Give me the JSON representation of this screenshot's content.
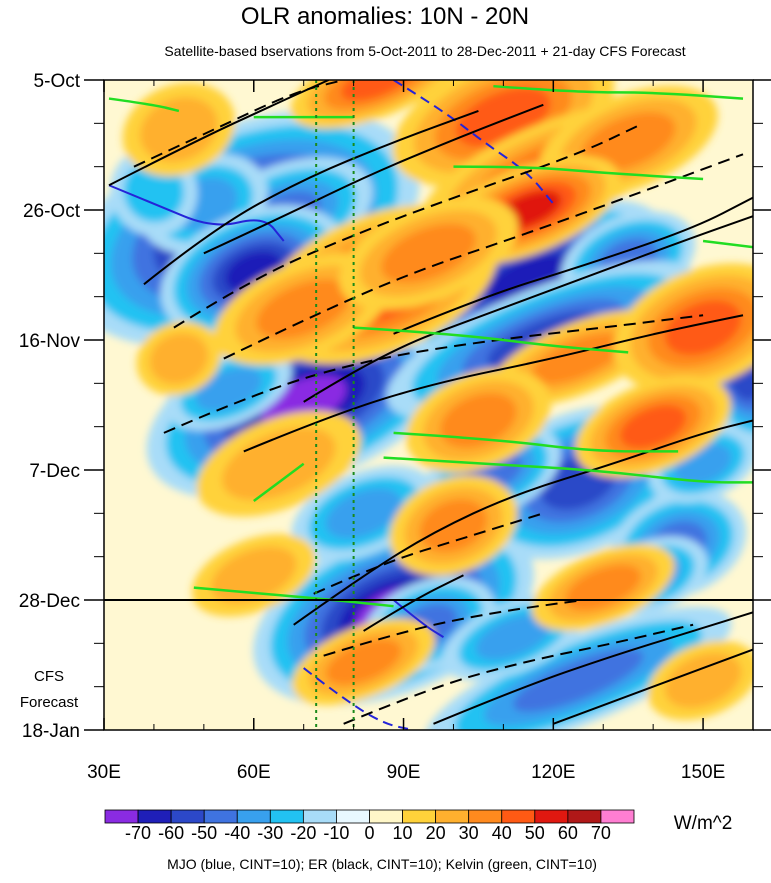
{
  "chart_data": {
    "type": "heatmap",
    "title": "OLR anomalies: 10N - 20N",
    "subtitle": "Satellite-based bservations from 5-Oct-2011 to 28-Dec-2011 + 21-day CFS Forecast",
    "x_axis": {
      "label": "",
      "ticks": [
        "30E",
        "60E",
        "90E",
        "120E",
        "150E"
      ],
      "tick_values": [
        30,
        60,
        90,
        120,
        150
      ],
      "range": [
        30,
        160
      ]
    },
    "y_axis": {
      "label": "",
      "ticks": [
        "5-Oct",
        "26-Oct",
        "16-Nov",
        "7-Dec",
        "28-Dec",
        "18-Jan"
      ],
      "tick_days": [
        0,
        21,
        42,
        63,
        84,
        105
      ],
      "range_days": [
        0,
        105
      ],
      "inverted": true
    },
    "forecast_label": [
      "CFS",
      "Forecast"
    ],
    "observation_end_line_day": 84,
    "reference_longitudes": [
      72.5,
      80
    ],
    "colorbar": {
      "labels": [
        "-70",
        "-60",
        "-50",
        "-40",
        "-30",
        "-20",
        "-10",
        "0",
        "10",
        "20",
        "30",
        "40",
        "50",
        "60",
        "70"
      ],
      "colors": [
        "#8a2be2",
        "#1f1fb8",
        "#2c48c8",
        "#3f73e0",
        "#38a0ee",
        "#22c2f2",
        "#a8dcf8",
        "#e8f8ff",
        "#fff7c8",
        "#ffd23a",
        "#ffb02e",
        "#ff8a1e",
        "#ff5a14",
        "#e01810",
        "#b01818",
        "#ff7ed2"
      ],
      "units": "W/m^2"
    },
    "contour_note": "MJO (blue, CINT=10); ER (black, CINT=10); Kelvin (green, CINT=10)",
    "anomaly_features": [
      {
        "lon": 58,
        "day": 24,
        "value": -70,
        "rx": 10,
        "ry": 4.5
      },
      {
        "lon": 66,
        "day": 22,
        "value": -40,
        "rx": 8,
        "ry": 3.5
      },
      {
        "lon": 50,
        "day": 20,
        "value": -30,
        "rx": 7,
        "ry": 4
      },
      {
        "lon": 60,
        "day": 31,
        "value": -60,
        "rx": 6,
        "ry": 3
      },
      {
        "lon": 70,
        "day": 52,
        "value": -70,
        "rx": 9,
        "ry": 3.5
      },
      {
        "lon": 55,
        "day": 50,
        "value": -30,
        "rx": 7,
        "ry": 3
      },
      {
        "lon": 88,
        "day": 86,
        "value": -70,
        "rx": 8,
        "ry": 3.5
      },
      {
        "lon": 95,
        "day": 88,
        "value": -40,
        "rx": 6,
        "ry": 3
      },
      {
        "lon": 115,
        "day": 32,
        "value": -60,
        "rx": 9,
        "ry": 3
      },
      {
        "lon": 135,
        "day": 29,
        "value": -40,
        "rx": 6,
        "ry": 3
      },
      {
        "lon": 118,
        "day": 42,
        "value": -50,
        "rx": 12,
        "ry": 3
      },
      {
        "lon": 125,
        "day": 65,
        "value": -50,
        "rx": 8,
        "ry": 4
      },
      {
        "lon": 108,
        "day": 63,
        "value": -40,
        "rx": 6,
        "ry": 3
      },
      {
        "lon": 145,
        "day": 75,
        "value": -40,
        "rx": 6,
        "ry": 3.5
      },
      {
        "lon": 150,
        "day": 62,
        "value": -30,
        "rx": 6,
        "ry": 3
      },
      {
        "lon": 125,
        "day": 97,
        "value": -40,
        "rx": 14,
        "ry": 3
      },
      {
        "lon": 158,
        "day": 48,
        "value": -50,
        "rx": 3,
        "ry": 4
      },
      {
        "lon": 82,
        "day": 70,
        "value": -30,
        "rx": 8,
        "ry": 3.5
      },
      {
        "lon": 140,
        "day": 80,
        "value": -30,
        "rx": 6,
        "ry": 3
      },
      {
        "lon": 112,
        "day": 90,
        "value": -30,
        "rx": 8,
        "ry": 3
      },
      {
        "lon": 40,
        "day": 18,
        "value": -20,
        "rx": 6,
        "ry": 5
      },
      {
        "lon": 85,
        "day": 0,
        "value": 40,
        "rx": 8,
        "ry": 2.5
      },
      {
        "lon": 110,
        "day": 6,
        "value": 40,
        "rx": 10,
        "ry": 4
      },
      {
        "lon": 120,
        "day": 15,
        "value": 40,
        "rx": 12,
        "ry": 3.5
      },
      {
        "lon": 135,
        "day": 10,
        "value": 30,
        "rx": 10,
        "ry": 4
      },
      {
        "lon": 115,
        "day": 21,
        "value": 50,
        "rx": 7,
        "ry": 2.5
      },
      {
        "lon": 85,
        "day": 33,
        "value": 50,
        "rx": 9,
        "ry": 4
      },
      {
        "lon": 70,
        "day": 37,
        "value": 30,
        "rx": 10,
        "ry": 4
      },
      {
        "lon": 95,
        "day": 28,
        "value": 30,
        "rx": 10,
        "ry": 4
      },
      {
        "lon": 125,
        "day": 45,
        "value": 30,
        "rx": 10,
        "ry": 3
      },
      {
        "lon": 150,
        "day": 40,
        "value": 40,
        "rx": 8,
        "ry": 4
      },
      {
        "lon": 140,
        "day": 56,
        "value": 40,
        "rx": 7,
        "ry": 3
      },
      {
        "lon": 105,
        "day": 55,
        "value": 30,
        "rx": 8,
        "ry": 4
      },
      {
        "lon": 100,
        "day": 72,
        "value": 30,
        "rx": 7,
        "ry": 4
      },
      {
        "lon": 65,
        "day": 62,
        "value": 20,
        "rx": 12,
        "ry": 5
      },
      {
        "lon": 130,
        "day": 82,
        "value": 30,
        "rx": 8,
        "ry": 3
      },
      {
        "lon": 82,
        "day": 94,
        "value": 30,
        "rx": 8,
        "ry": 3
      },
      {
        "lon": 60,
        "day": 80,
        "value": 20,
        "rx": 9,
        "ry": 4
      },
      {
        "lon": 150,
        "day": 97,
        "value": 20,
        "rx": 8,
        "ry": 4
      },
      {
        "lon": 45,
        "day": 45,
        "value": 20,
        "rx": 6,
        "ry": 4
      },
      {
        "lon": 45,
        "day": 8,
        "value": 20,
        "rx": 8,
        "ry": 5
      }
    ],
    "er_contours": [
      {
        "style": "solid",
        "points": [
          [
            31,
            17
          ],
          [
            48,
            10
          ],
          [
            64,
            4
          ],
          [
            75,
            0
          ]
        ]
      },
      {
        "style": "dashed",
        "points": [
          [
            36,
            14
          ],
          [
            52,
            8
          ],
          [
            68,
            2
          ],
          [
            78,
            0
          ]
        ]
      },
      {
        "style": "solid",
        "points": [
          [
            38,
            33
          ],
          [
            52,
            24
          ],
          [
            70,
            16
          ],
          [
            88,
            10
          ],
          [
            105,
            5
          ]
        ]
      },
      {
        "style": "solid",
        "points": [
          [
            50,
            28
          ],
          [
            66,
            22
          ],
          [
            84,
            15
          ],
          [
            102,
            9
          ],
          [
            118,
            4
          ]
        ]
      },
      {
        "style": "dashed",
        "points": [
          [
            44,
            40
          ],
          [
            60,
            32
          ],
          [
            80,
            25
          ],
          [
            100,
            19
          ],
          [
            125,
            12
          ],
          [
            138,
            7
          ]
        ]
      },
      {
        "style": "dashed",
        "points": [
          [
            54,
            45
          ],
          [
            72,
            38
          ],
          [
            92,
            31
          ],
          [
            114,
            25
          ],
          [
            138,
            18
          ],
          [
            158,
            12
          ]
        ]
      },
      {
        "style": "solid",
        "points": [
          [
            70,
            52
          ],
          [
            86,
            44
          ],
          [
            106,
            38
          ],
          [
            126,
            32
          ],
          [
            146,
            26
          ],
          [
            160,
            22
          ]
        ]
      },
      {
        "style": "solid",
        "points": [
          [
            88,
            41
          ],
          [
            106,
            35
          ],
          [
            126,
            30
          ],
          [
            148,
            24
          ],
          [
            160,
            19
          ]
        ]
      },
      {
        "style": "dashed",
        "points": [
          [
            42,
            57
          ],
          [
            62,
            50
          ],
          [
            84,
            45
          ],
          [
            108,
            42
          ],
          [
            130,
            40
          ],
          [
            150,
            38
          ]
        ]
      },
      {
        "style": "solid",
        "points": [
          [
            58,
            60
          ],
          [
            76,
            54
          ],
          [
            96,
            49
          ],
          [
            120,
            45
          ],
          [
            140,
            41
          ],
          [
            158,
            38
          ]
        ]
      },
      {
        "style": "solid",
        "points": [
          [
            68,
            88
          ],
          [
            82,
            80
          ],
          [
            96,
            73
          ],
          [
            112,
            67
          ],
          [
            132,
            62
          ],
          [
            150,
            57
          ],
          [
            160,
            55
          ]
        ]
      },
      {
        "style": "dashed",
        "points": [
          [
            72,
            83
          ],
          [
            86,
            78
          ],
          [
            102,
            74
          ],
          [
            118,
            70
          ]
        ]
      },
      {
        "style": "solid",
        "points": [
          [
            82,
            89
          ],
          [
            92,
            84
          ],
          [
            102,
            80
          ]
        ]
      },
      {
        "style": "dashed",
        "points": [
          [
            74,
            93
          ],
          [
            90,
            89
          ],
          [
            108,
            86
          ],
          [
            126,
            84
          ]
        ]
      },
      {
        "style": "dashed",
        "points": [
          [
            78,
            104
          ],
          [
            96,
            98
          ],
          [
            114,
            94
          ],
          [
            132,
            91
          ],
          [
            148,
            88
          ]
        ]
      },
      {
        "style": "solid",
        "points": [
          [
            96,
            104
          ],
          [
            114,
            98
          ],
          [
            132,
            93
          ],
          [
            148,
            89
          ],
          [
            160,
            86
          ]
        ]
      },
      {
        "style": "solid",
        "points": [
          [
            120,
            104
          ],
          [
            140,
            98
          ],
          [
            160,
            92
          ]
        ]
      }
    ],
    "mjo_contours": [
      {
        "style": "solid",
        "points": [
          [
            31,
            17
          ],
          [
            40,
            20
          ],
          [
            52,
            24
          ],
          [
            62,
            22
          ],
          [
            66,
            26
          ]
        ]
      },
      {
        "style": "dashed",
        "points": [
          [
            88,
            0
          ],
          [
            98,
            5
          ],
          [
            106,
            10
          ],
          [
            115,
            15
          ],
          [
            120,
            20
          ]
        ]
      },
      {
        "style": "dashed",
        "points": [
          [
            70,
            95
          ],
          [
            78,
            100
          ],
          [
            86,
            104
          ],
          [
            92,
            105
          ]
        ]
      },
      {
        "style": "solid",
        "points": [
          [
            88,
            84
          ],
          [
            94,
            88
          ],
          [
            98,
            90
          ]
        ]
      }
    ],
    "kelvin_contours": [
      {
        "points": [
          [
            31,
            3
          ],
          [
            40,
            4
          ],
          [
            45,
            5
          ]
        ]
      },
      {
        "points": [
          [
            60,
            6
          ],
          [
            70,
            6
          ],
          [
            80,
            6
          ]
        ]
      },
      {
        "points": [
          [
            100,
            14
          ],
          [
            115,
            14
          ],
          [
            130,
            15
          ],
          [
            150,
            16
          ]
        ]
      },
      {
        "points": [
          [
            108,
            1
          ],
          [
            125,
            2
          ],
          [
            140,
            2
          ],
          [
            158,
            3
          ]
        ]
      },
      {
        "points": [
          [
            80,
            40
          ],
          [
            100,
            41
          ],
          [
            120,
            43
          ],
          [
            135,
            44
          ]
        ]
      },
      {
        "points": [
          [
            60,
            68
          ],
          [
            70,
            62
          ]
        ]
      },
      {
        "points": [
          [
            88,
            57
          ],
          [
            108,
            58
          ],
          [
            128,
            60
          ],
          [
            145,
            60
          ]
        ]
      },
      {
        "points": [
          [
            48,
            82
          ],
          [
            62,
            83
          ],
          [
            76,
            84
          ],
          [
            88,
            85
          ]
        ]
      },
      {
        "points": [
          [
            86,
            61
          ],
          [
            106,
            62
          ],
          [
            128,
            63
          ],
          [
            150,
            65
          ],
          [
            160,
            65
          ]
        ]
      },
      {
        "points": [
          [
            150,
            26
          ],
          [
            160,
            27
          ]
        ]
      }
    ]
  }
}
